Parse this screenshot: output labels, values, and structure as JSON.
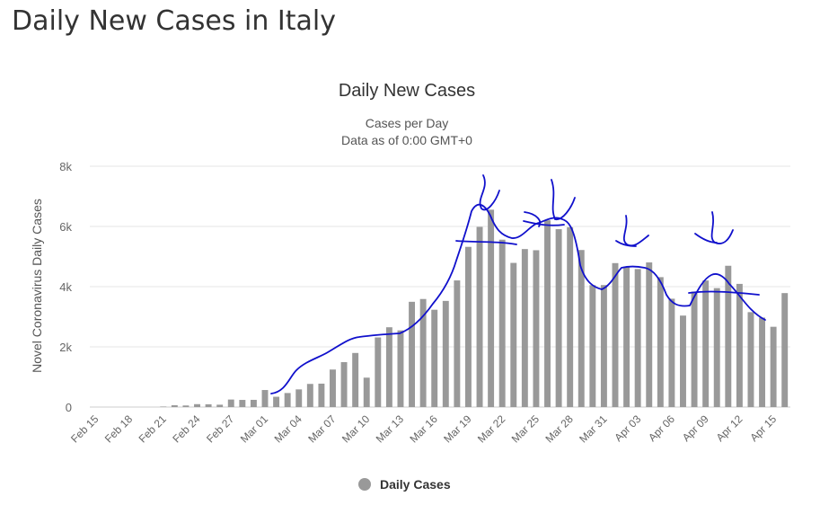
{
  "page": {
    "title": "Daily New Cases in Italy"
  },
  "chart_data": {
    "type": "bar",
    "title": "Daily New Cases",
    "subtitle_lines": [
      "Cases per Day",
      "Data as of 0:00 GMT+0"
    ],
    "ylabel": "Novel Coronavirus Daily Cases",
    "ylim": [
      0,
      8000
    ],
    "yticks": [
      {
        "value": 0,
        "label": "0"
      },
      {
        "value": 2000,
        "label": "2k"
      },
      {
        "value": 4000,
        "label": "4k"
      },
      {
        "value": 6000,
        "label": "6k"
      },
      {
        "value": 8000,
        "label": "8k"
      }
    ],
    "categories": [
      "Feb 15",
      "Feb 16",
      "Feb 17",
      "Feb 18",
      "Feb 19",
      "Feb 20",
      "Feb 21",
      "Feb 22",
      "Feb 23",
      "Feb 24",
      "Feb 25",
      "Feb 26",
      "Feb 27",
      "Feb 28",
      "Feb 29",
      "Mar 01",
      "Mar 02",
      "Mar 03",
      "Mar 04",
      "Mar 05",
      "Mar 06",
      "Mar 07",
      "Mar 08",
      "Mar 09",
      "Mar 10",
      "Mar 11",
      "Mar 12",
      "Mar 13",
      "Mar 14",
      "Mar 15",
      "Mar 16",
      "Mar 17",
      "Mar 18",
      "Mar 19",
      "Mar 20",
      "Mar 21",
      "Mar 22",
      "Mar 23",
      "Mar 24",
      "Mar 25",
      "Mar 26",
      "Mar 27",
      "Mar 28",
      "Mar 29",
      "Mar 30",
      "Mar 31",
      "Apr 01",
      "Apr 02",
      "Apr 03",
      "Apr 04",
      "Apr 05",
      "Apr 06",
      "Apr 07",
      "Apr 08",
      "Apr 09",
      "Apr 10",
      "Apr 11",
      "Apr 12",
      "Apr 13",
      "Apr 14",
      "Apr 15",
      "Apr 16"
    ],
    "x_tick_labels": [
      "Feb 15",
      "Feb 18",
      "Feb 21",
      "Feb 24",
      "Feb 27",
      "Mar 01",
      "Mar 04",
      "Mar 07",
      "Mar 10",
      "Mar 13",
      "Mar 16",
      "Mar 19",
      "Mar 22",
      "Mar 25",
      "Mar 28",
      "Mar 31",
      "Apr 03",
      "Apr 06",
      "Apr 09",
      "Apr 12",
      "Apr 15"
    ],
    "series": [
      {
        "name": "Daily Cases",
        "color": "#999999",
        "values": [
          0,
          0,
          0,
          0,
          0,
          0,
          17,
          62,
          53,
          97,
          93,
          78,
          250,
          238,
          240,
          566,
          342,
          466,
          587,
          769,
          778,
          1247,
          1492,
          1797,
          977,
          2313,
          2651,
          2547,
          3497,
          3590,
          3233,
          3526,
          4207,
          5322,
          5986,
          6557,
          5560,
          4789,
          5249,
          5210,
          6203,
          5909,
          5974,
          5217,
          4050,
          4053,
          4782,
          4668,
          4585,
          4805,
          4316,
          3599,
          3039,
          3836,
          4204,
          3951,
          4694,
          4092,
          3153,
          2972,
          2667,
          3786
        ]
      }
    ],
    "legend": {
      "position": "bottom-center",
      "label": "Daily Cases"
    },
    "grid": true,
    "annotation_color": "#1010cc"
  }
}
